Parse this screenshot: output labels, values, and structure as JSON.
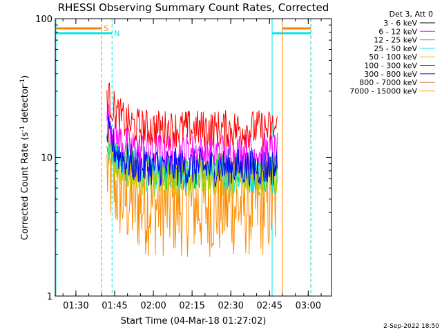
{
  "chart_data": {
    "type": "line",
    "title": "RHESSI Observing Summary Count Rates, Corrected",
    "xlabel": "Start Time (04-Mar-18 01:27:02)",
    "ylabel_parts": [
      "Corrected Count Rate (s",
      "-1",
      " detector",
      "-1",
      ")"
    ],
    "y_scale": "log",
    "ylim": [
      1,
      100
    ],
    "xlim": [
      "01:22",
      "03:09"
    ],
    "x_ticks": [
      "01:30",
      "01:45",
      "02:00",
      "02:15",
      "02:30",
      "02:45",
      "03:00"
    ],
    "y_ticks": [
      "1",
      "10",
      "100"
    ],
    "legend_header": "Det 3, Att 0",
    "legend_placement": "right",
    "series": [
      {
        "name": "3 - 6 keV",
        "color": "#000000",
        "level": null
      },
      {
        "name": "6 - 12 keV",
        "color": "#ff00ff",
        "level": 11
      },
      {
        "name": "12 - 25 keV",
        "color": "#00cc00",
        "level": 8
      },
      {
        "name": "25 - 50 keV",
        "color": "#00e5e5",
        "level": 7.5
      },
      {
        "name": "50 - 100 keV",
        "color": "#cccc00",
        "level": 7
      },
      {
        "name": "100 - 300 keV",
        "color": "#ff0000",
        "level": 16
      },
      {
        "name": "300 - 800 keV",
        "color": "#0000ff",
        "level": 8.5
      },
      {
        "name": "800 - 7000 keV",
        "color": "#d2691e",
        "level": null
      },
      {
        "name": "7000 - 15000 keV",
        "color": "#ff8c00",
        "level": 4.5
      }
    ],
    "segments": [
      {
        "name": "SAA",
        "label": "S",
        "color": "#ff8000",
        "start": "01:22",
        "end": "01:40"
      },
      {
        "name": "Night",
        "label": "N",
        "color": "#00e5e5",
        "start": "01:22",
        "end": "01:44"
      },
      {
        "name": "SAA",
        "label": "",
        "color": "#ff8000",
        "start": "02:50",
        "end": "03:01"
      },
      {
        "name": "Night",
        "label": "",
        "color": "#00e5e5",
        "start": "02:46",
        "end": "03:01"
      }
    ],
    "observation_window": [
      "01:42",
      "02:48"
    ],
    "grid": false
  },
  "footer": {
    "date_stamp": "2-Sep-2022 18:50"
  }
}
